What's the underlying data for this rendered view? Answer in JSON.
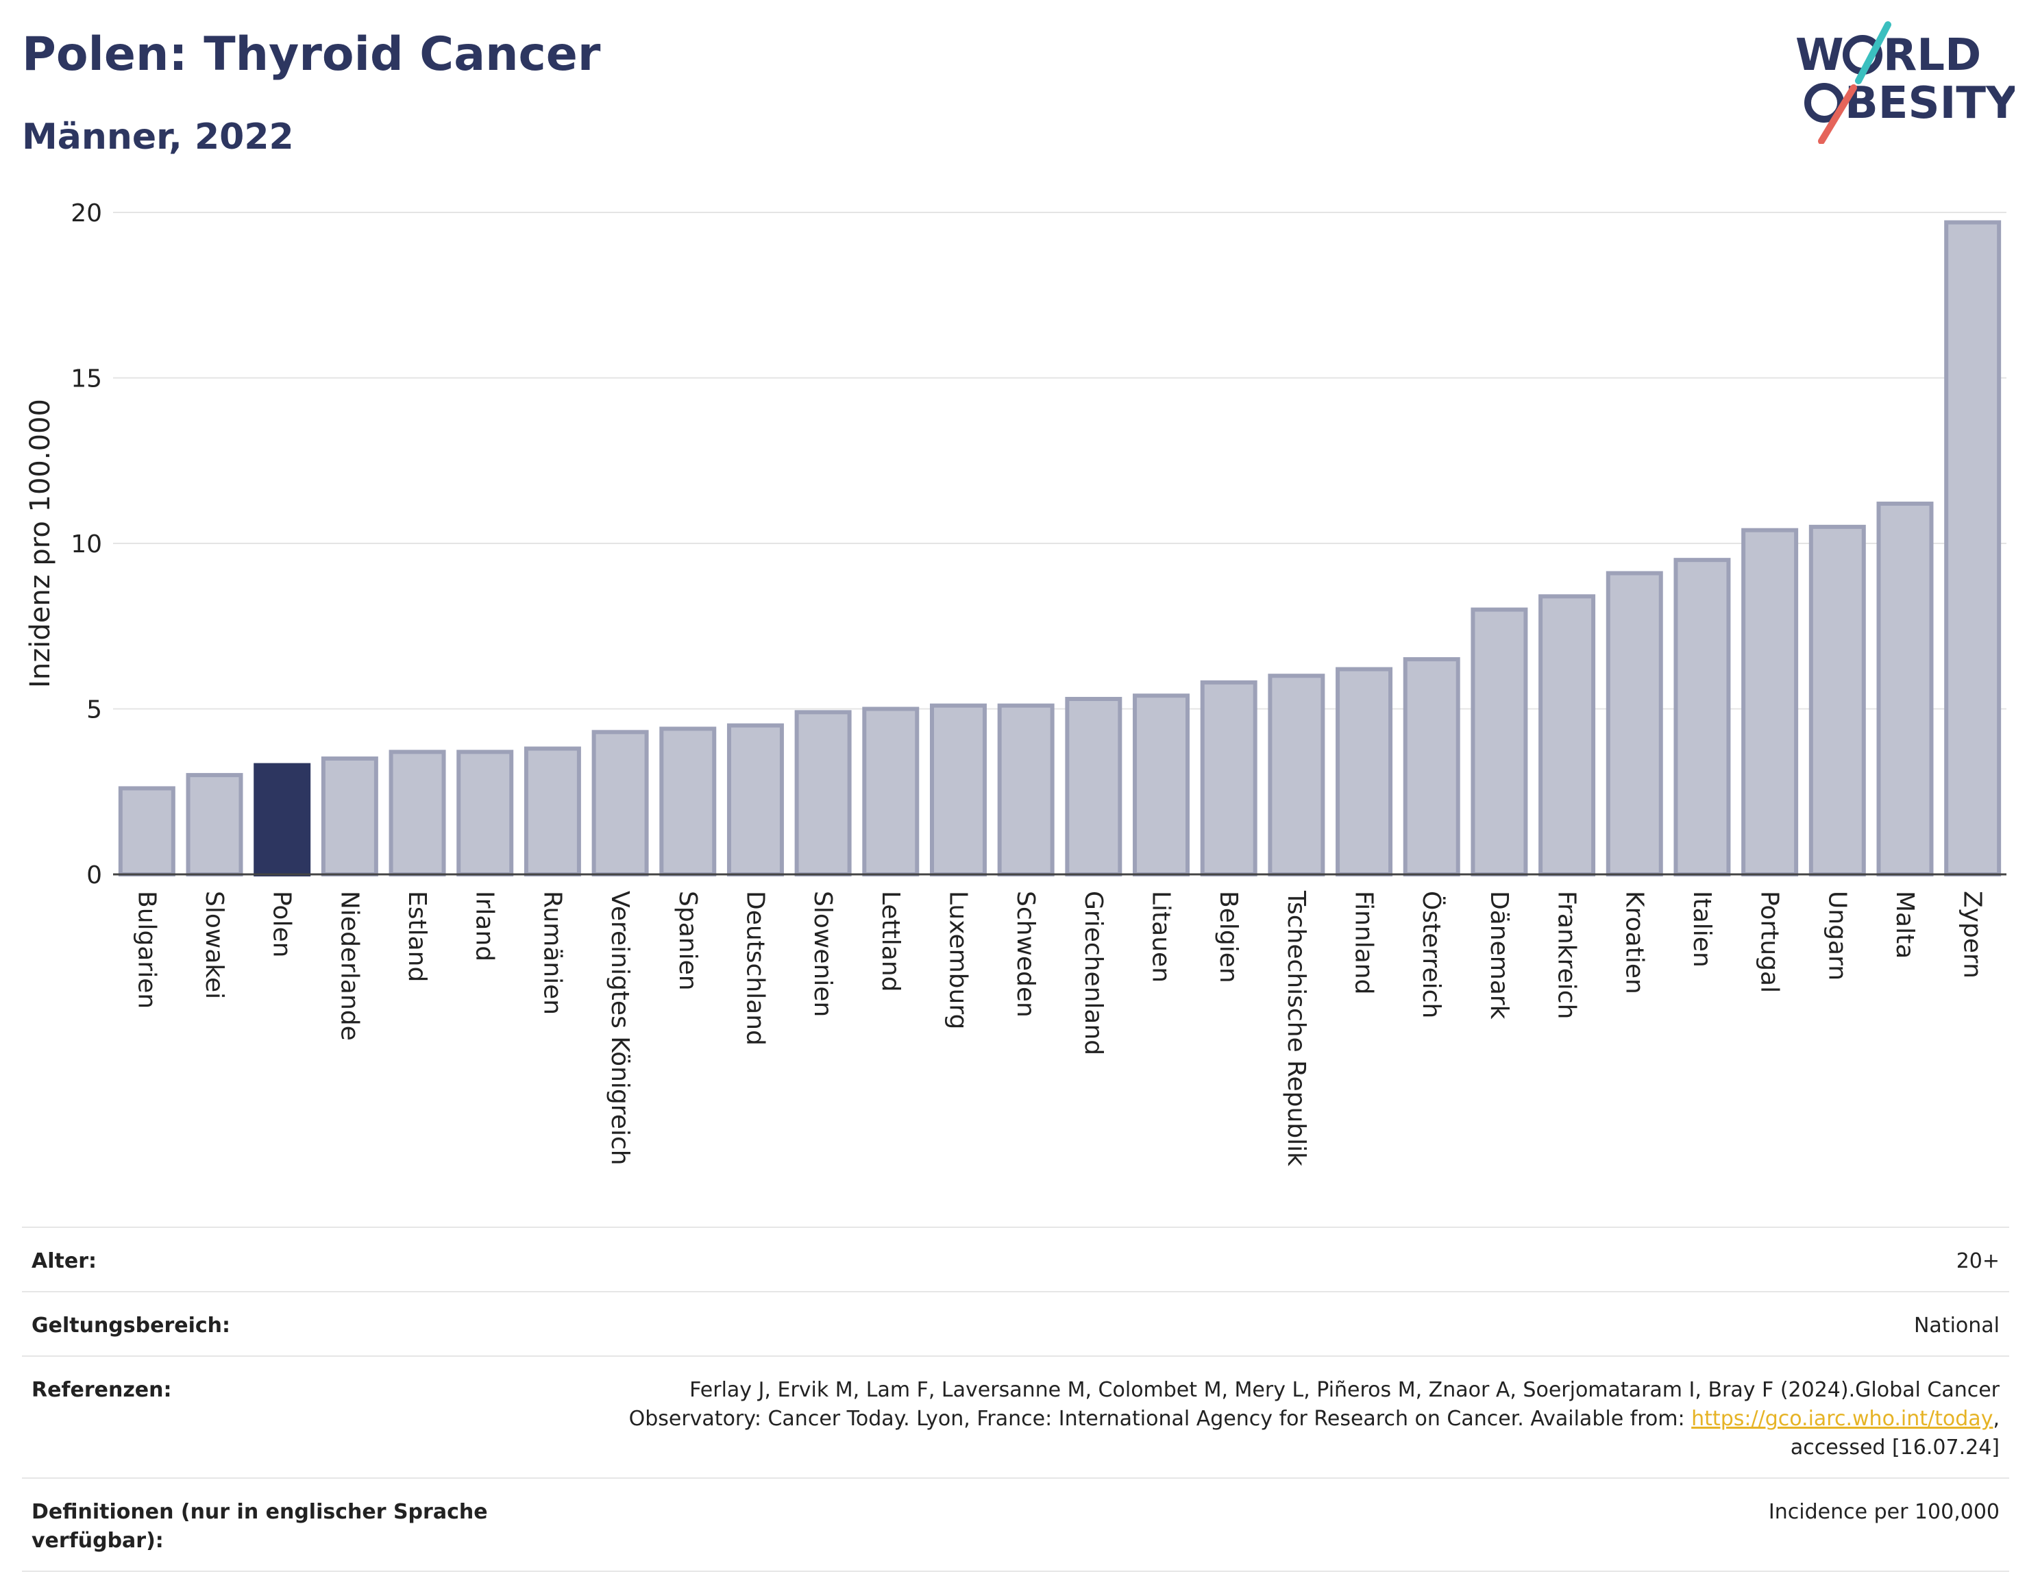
{
  "header": {
    "title": "Polen: Thyroid Cancer",
    "subtitle": "Männer, 2022"
  },
  "logo": {
    "line1": "W",
    "line1b": "RLD",
    "line2b": "BESITY",
    "colors": {
      "text": "#2d3660",
      "teal": "#3bbfbf",
      "red": "#e5645a"
    }
  },
  "chart_data": {
    "type": "bar",
    "title": "",
    "xlabel": "",
    "ylabel": "Inzidenz pro 100.000",
    "ylim": [
      0,
      20
    ],
    "yticks": [
      0,
      5,
      10,
      15,
      20
    ],
    "grid": true,
    "highlight": "Polen",
    "colors": {
      "bar": "#bfc2d0",
      "bar_edge": "#9da1b8",
      "highlight": "#2d3660"
    },
    "categories": [
      "Bulgarien",
      "Slowakei",
      "Polen",
      "Niederlande",
      "Estland",
      "Irland",
      "Rumänien",
      "Vereinigtes Königreich",
      "Spanien",
      "Deutschland",
      "Slowenien",
      "Lettland",
      "Luxemburg",
      "Schweden",
      "Griechenland",
      "Litauen",
      "Belgien",
      "Tschechische Republik",
      "Finnland",
      "Österreich",
      "Dänemark",
      "Frankreich",
      "Kroatien",
      "Italien",
      "Portugal",
      "Ungarn",
      "Malta",
      "Zypern"
    ],
    "values": [
      2.6,
      3.0,
      3.3,
      3.5,
      3.7,
      3.7,
      3.8,
      4.3,
      4.4,
      4.5,
      4.9,
      5.0,
      5.1,
      5.1,
      5.3,
      5.4,
      5.8,
      6.0,
      6.2,
      6.5,
      8.0,
      8.4,
      9.1,
      9.5,
      10.4,
      10.5,
      11.2,
      19.7
    ]
  },
  "info": {
    "age_label": "Alter:",
    "age_value": "20+",
    "scope_label": "Geltungsbereich:",
    "scope_value": "National",
    "ref_label": "Referenzen:",
    "ref_text1": "Ferlay J, Ervik M, Lam F, Laversanne M, Colombet M, Mery L, Piñeros M, Znaor A, Soerjomataram I, Bray F (2024).Global Cancer Observatory: Cancer Today. Lyon, France: International Agency for Research on Cancer. Available from: ",
    "ref_link": "https://gco.iarc.who.int/today",
    "ref_text2": ", accessed [16.07.24]",
    "def_label": "Definitionen (nur in englischer Sprache verfügbar):",
    "def_value": "Incidence per 100,000"
  }
}
